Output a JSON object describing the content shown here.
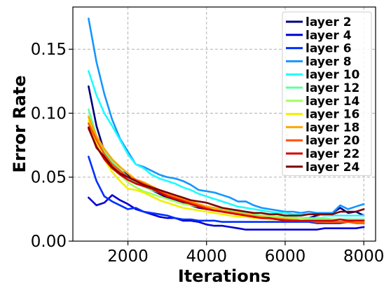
{
  "chart_data": {
    "type": "line",
    "title": "",
    "xlabel": "Iterations",
    "ylabel": "Error Rate",
    "xlim": [
      600,
      8300
    ],
    "ylim": [
      0,
      0.183
    ],
    "xticks": [
      2000,
      4000,
      6000,
      8000
    ],
    "xtick_labels": [
      "2000",
      "4000",
      "6000",
      "8000"
    ],
    "yticks": [
      0,
      0.05,
      0.1,
      0.15
    ],
    "ytick_labels": [
      "0.00",
      "0.05",
      "0.10",
      "0.15"
    ],
    "grid": true,
    "legend_position": "top-right",
    "x": [
      1000,
      1200,
      1400,
      1600,
      1800,
      2000,
      2200,
      2400,
      2600,
      2800,
      3000,
      3200,
      3400,
      3600,
      3800,
      4000,
      4200,
      4400,
      4600,
      4800,
      5000,
      5200,
      5400,
      5600,
      5800,
      6000,
      6200,
      6400,
      6600,
      6800,
      7000,
      7200,
      7400,
      7600,
      7800,
      8000
    ],
    "series": [
      {
        "name": "layer 2",
        "color": "#00007f",
        "values": [
          0.121,
          0.09,
          0.07,
          0.062,
          0.055,
          0.052,
          0.045,
          0.043,
          0.04,
          0.037,
          0.034,
          0.032,
          0.03,
          0.028,
          0.026,
          0.025,
          0.024,
          0.023,
          0.022,
          0.021,
          0.021,
          0.02,
          0.02,
          0.019,
          0.019,
          0.018,
          0.018,
          0.018,
          0.018,
          0.02,
          0.021,
          0.022,
          0.026,
          0.022,
          0.023,
          0.02
        ]
      },
      {
        "name": "layer 4",
        "color": "#0000d4",
        "values": [
          0.034,
          0.028,
          0.03,
          0.036,
          0.032,
          0.029,
          0.025,
          0.023,
          0.021,
          0.019,
          0.018,
          0.018,
          0.016,
          0.016,
          0.015,
          0.013,
          0.012,
          0.012,
          0.011,
          0.01,
          0.009,
          0.009,
          0.009,
          0.009,
          0.009,
          0.009,
          0.009,
          0.009,
          0.009,
          0.009,
          0.01,
          0.01,
          0.01,
          0.01,
          0.01,
          0.011
        ]
      },
      {
        "name": "layer 6",
        "color": "#0030ff",
        "values": [
          0.066,
          0.047,
          0.035,
          0.031,
          0.028,
          0.025,
          0.026,
          0.023,
          0.022,
          0.021,
          0.02,
          0.018,
          0.017,
          0.017,
          0.016,
          0.016,
          0.016,
          0.015,
          0.015,
          0.015,
          0.015,
          0.015,
          0.015,
          0.015,
          0.015,
          0.015,
          0.015,
          0.015,
          0.015,
          0.014,
          0.014,
          0.014,
          0.014,
          0.015,
          0.015,
          0.014
        ]
      },
      {
        "name": "layer 8",
        "color": "#1596ff",
        "values": [
          0.174,
          0.14,
          0.115,
          0.095,
          0.08,
          0.07,
          0.06,
          0.058,
          0.055,
          0.052,
          0.05,
          0.049,
          0.047,
          0.044,
          0.04,
          0.039,
          0.038,
          0.036,
          0.034,
          0.031,
          0.031,
          0.028,
          0.026,
          0.025,
          0.024,
          0.023,
          0.023,
          0.022,
          0.023,
          0.022,
          0.022,
          0.022,
          0.028,
          0.025,
          0.027,
          0.029
        ]
      },
      {
        "name": "layer 10",
        "color": "#1dfbff",
        "values": [
          0.133,
          0.114,
          0.1,
          0.09,
          0.079,
          0.068,
          0.06,
          0.057,
          0.052,
          0.049,
          0.047,
          0.045,
          0.042,
          0.04,
          0.037,
          0.035,
          0.033,
          0.031,
          0.029,
          0.027,
          0.026,
          0.025,
          0.024,
          0.023,
          0.022,
          0.022,
          0.021,
          0.021,
          0.021,
          0.021,
          0.02,
          0.02,
          0.02,
          0.02,
          0.02,
          0.02
        ]
      },
      {
        "name": "layer 12",
        "color": "#60ffa0",
        "values": [
          0.103,
          0.082,
          0.07,
          0.062,
          0.056,
          0.05,
          0.046,
          0.043,
          0.04,
          0.038,
          0.036,
          0.034,
          0.032,
          0.03,
          0.028,
          0.027,
          0.026,
          0.025,
          0.024,
          0.023,
          0.022,
          0.021,
          0.02,
          0.02,
          0.019,
          0.019,
          0.019,
          0.018,
          0.018,
          0.018,
          0.018,
          0.017,
          0.017,
          0.017,
          0.017,
          0.017
        ]
      },
      {
        "name": "layer 14",
        "color": "#a0ff60",
        "values": [
          0.098,
          0.08,
          0.068,
          0.059,
          0.052,
          0.046,
          0.042,
          0.039,
          0.037,
          0.035,
          0.033,
          0.031,
          0.029,
          0.028,
          0.027,
          0.026,
          0.025,
          0.024,
          0.023,
          0.022,
          0.021,
          0.02,
          0.02,
          0.019,
          0.019,
          0.018,
          0.018,
          0.018,
          0.017,
          0.017,
          0.017,
          0.017,
          0.017,
          0.016,
          0.016,
          0.016
        ]
      },
      {
        "name": "layer 16",
        "color": "#f0f000",
        "values": [
          0.094,
          0.076,
          0.064,
          0.054,
          0.047,
          0.041,
          0.04,
          0.038,
          0.035,
          0.032,
          0.03,
          0.028,
          0.026,
          0.025,
          0.024,
          0.023,
          0.022,
          0.021,
          0.02,
          0.019,
          0.019,
          0.018,
          0.018,
          0.017,
          0.017,
          0.016,
          0.016,
          0.016,
          0.016,
          0.016,
          0.015,
          0.015,
          0.015,
          0.015,
          0.015,
          0.015
        ]
      },
      {
        "name": "layer 18",
        "color": "#ffa600",
        "values": [
          0.097,
          0.082,
          0.072,
          0.064,
          0.058,
          0.053,
          0.048,
          0.046,
          0.043,
          0.04,
          0.037,
          0.035,
          0.033,
          0.031,
          0.029,
          0.027,
          0.026,
          0.024,
          0.023,
          0.022,
          0.021,
          0.02,
          0.019,
          0.018,
          0.018,
          0.017,
          0.017,
          0.016,
          0.016,
          0.016,
          0.016,
          0.015,
          0.015,
          0.015,
          0.015,
          0.015
        ]
      },
      {
        "name": "layer 20",
        "color": "#ff5200",
        "values": [
          0.092,
          0.079,
          0.068,
          0.06,
          0.055,
          0.05,
          0.048,
          0.045,
          0.042,
          0.039,
          0.036,
          0.034,
          0.032,
          0.03,
          0.028,
          0.026,
          0.024,
          0.023,
          0.022,
          0.021,
          0.02,
          0.019,
          0.018,
          0.018,
          0.017,
          0.017,
          0.016,
          0.016,
          0.016,
          0.015,
          0.015,
          0.015,
          0.015,
          0.015,
          0.014,
          0.014
        ]
      },
      {
        "name": "layer 22",
        "color": "#d40000",
        "values": [
          0.088,
          0.074,
          0.064,
          0.057,
          0.052,
          0.048,
          0.045,
          0.043,
          0.041,
          0.038,
          0.035,
          0.033,
          0.031,
          0.029,
          0.027,
          0.025,
          0.024,
          0.023,
          0.022,
          0.021,
          0.02,
          0.019,
          0.018,
          0.018,
          0.017,
          0.016,
          0.016,
          0.016,
          0.016,
          0.016,
          0.016,
          0.016,
          0.017,
          0.016,
          0.016,
          0.016
        ]
      },
      {
        "name": "layer 24",
        "color": "#7f0000",
        "values": [
          0.089,
          0.073,
          0.066,
          0.058,
          0.053,
          0.05,
          0.047,
          0.044,
          0.042,
          0.04,
          0.038,
          0.036,
          0.034,
          0.032,
          0.031,
          0.03,
          0.028,
          0.026,
          0.025,
          0.024,
          0.023,
          0.022,
          0.022,
          0.021,
          0.021,
          0.02,
          0.02,
          0.02,
          0.021,
          0.021,
          0.021,
          0.021,
          0.023,
          0.023,
          0.023,
          0.025
        ]
      }
    ]
  }
}
